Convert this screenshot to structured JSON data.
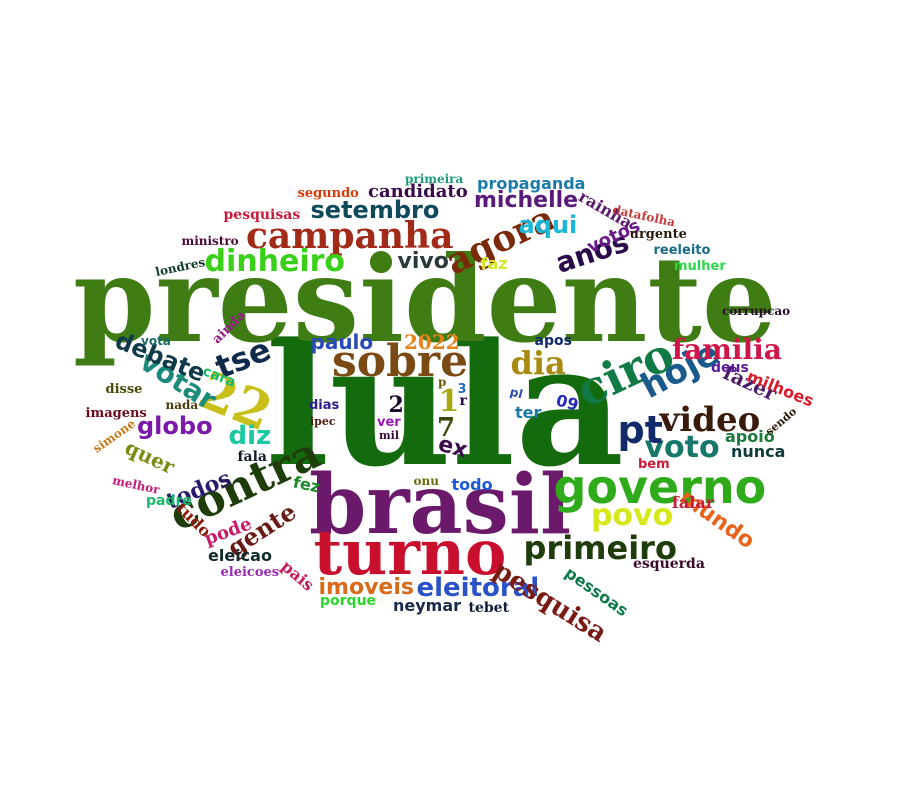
{
  "words": [
    {
      "text": "lula",
      "color": "#146b0e",
      "font": "serif"
    },
    {
      "text": "presidente",
      "color": "#3f7d14",
      "font": "serif"
    },
    {
      "text": "brasil",
      "color": "#6b1a6b",
      "font": "serif"
    },
    {
      "text": "turno",
      "color": "#c8102e",
      "font": "serif"
    },
    {
      "text": "governo",
      "color": "#2faa1a",
      "font": "sans"
    },
    {
      "text": "contra",
      "color": "#1f3d0a",
      "font": "serif"
    },
    {
      "text": "ciro",
      "color": "#0f7a44",
      "font": "serif"
    },
    {
      "text": "campanha",
      "color": "#a12a18",
      "font": "serif"
    },
    {
      "text": "sobre",
      "color": "#7a4a14",
      "font": "serif"
    },
    {
      "text": "agora",
      "color": "#7a2a0a",
      "font": "serif"
    },
    {
      "text": "primeiro",
      "color": "#1f3d0a",
      "font": "sans"
    },
    {
      "text": "video",
      "color": "#3a1a0a",
      "font": "serif"
    },
    {
      "text": "hoje",
      "color": "#1a5a8a",
      "font": "sans"
    },
    {
      "text": "voto",
      "color": "#16786a",
      "font": "sans"
    },
    {
      "text": "povo",
      "color": "#d6e81a",
      "font": "sans"
    },
    {
      "text": "familia",
      "color": "#d0154a",
      "font": "serif"
    },
    {
      "text": "dinheiro",
      "color": "#3ad01a",
      "font": "sans"
    },
    {
      "text": "22",
      "color": "#c8c018",
      "font": "serif"
    },
    {
      "text": "dia",
      "color": "#a88a10",
      "font": "serif"
    },
    {
      "text": "pt",
      "color": "#122a6a",
      "font": "sans"
    },
    {
      "text": "tse",
      "color": "#0f2a4a",
      "font": "sans"
    },
    {
      "text": "eleitoral",
      "color": "#2a52c8",
      "font": "sans"
    },
    {
      "text": "anos",
      "color": "#2a0a4a",
      "font": "sans"
    },
    {
      "text": "pesquisa",
      "color": "#7a1a14",
      "font": "serif"
    },
    {
      "text": "gente",
      "color": "#6a1a14",
      "font": "serif"
    },
    {
      "text": "setembro",
      "color": "#0f4a5a",
      "font": "sans"
    },
    {
      "text": "votar",
      "color": "#1a8a7a",
      "font": "sans"
    },
    {
      "text": "debate",
      "color": "#0f3a4a",
      "font": "sans"
    },
    {
      "text": "todos",
      "color": "#2a1a6a",
      "font": "serif"
    },
    {
      "text": "michelle",
      "color": "#5a1a7a",
      "font": "sans"
    },
    {
      "text": "globo",
      "color": "#7a1aaa",
      "font": "sans"
    },
    {
      "text": "diz",
      "color": "#1ac8a0",
      "font": "sans"
    },
    {
      "text": "imoveis",
      "color": "#d86a1a",
      "font": "sans"
    },
    {
      "text": "aqui",
      "color": "#1ab8d8",
      "font": "sans"
    },
    {
      "text": "mundo",
      "color": "#e8621a",
      "font": "sans"
    },
    {
      "text": "vivo",
      "color": "#2a3a3a",
      "font": "sans"
    },
    {
      "text": "quer",
      "color": "#7a8a10",
      "font": "serif"
    },
    {
      "text": "ex",
      "color": "#3a0a4a",
      "font": "sans"
    },
    {
      "text": "fazer",
      "color": "#4a1a6a",
      "font": "serif"
    },
    {
      "text": "paulo",
      "color": "#2a4ab8",
      "font": "sans"
    },
    {
      "text": "candidato",
      "color": "#3a0a4a",
      "font": "serif"
    },
    {
      "text": "2022",
      "color": "#e8821a",
      "font": "serif"
    },
    {
      "text": "7",
      "color": "#3a4a0a",
      "font": "serif"
    },
    {
      "text": "1",
      "color": "#a8a810",
      "font": "serif"
    },
    {
      "text": "2",
      "color": "#1a0a2a",
      "font": "serif"
    },
    {
      "text": "votos",
      "color": "#6a1a8a",
      "font": "sans"
    },
    {
      "text": "propaganda",
      "color": "#1a7aaa",
      "font": "sans"
    },
    {
      "text": "rainha",
      "color": "#5a1a6a",
      "font": "serif"
    },
    {
      "text": "apoio",
      "color": "#1a7a3a",
      "font": "sans"
    },
    {
      "text": "milhoes",
      "color": "#d81a2a",
      "font": "sans"
    },
    {
      "text": "pode",
      "color": "#c81a6a",
      "font": "serif"
    },
    {
      "text": "pessoas",
      "color": "#0f7a4a",
      "font": "sans"
    },
    {
      "text": "neymar",
      "color": "#1a2a4a",
      "font": "sans"
    },
    {
      "text": "nunca",
      "color": "#0f3a3a",
      "font": "sans"
    },
    {
      "text": "falar",
      "color": "#c81a3a",
      "font": "serif"
    },
    {
      "text": "pesquisas",
      "color": "#c81a3a",
      "font": "serif"
    },
    {
      "text": "ter",
      "color": "#1a7aaa",
      "font": "sans"
    },
    {
      "text": "eleicao",
      "color": "#0f2a2a",
      "font": "sans"
    },
    {
      "text": "tudo",
      "color": "#8a1a0a",
      "font": "serif"
    },
    {
      "text": "pais",
      "color": "#c81a5a",
      "font": "serif"
    },
    {
      "text": "faz",
      "color": "#d8e82a",
      "font": "sans"
    },
    {
      "text": "fez",
      "color": "#1a8a2a",
      "font": "sans"
    },
    {
      "text": "todo",
      "color": "#1a5ad8",
      "font": "sans"
    },
    {
      "text": "deus",
      "color": "#5a1a9a",
      "font": "sans"
    },
    {
      "text": "esquerda",
      "color": "#3a0a2a",
      "font": "serif"
    },
    {
      "text": "fala",
      "color": "#0f1a2a",
      "font": "serif"
    },
    {
      "text": "padre",
      "color": "#1ab86a",
      "font": "sans"
    },
    {
      "text": "porque",
      "color": "#2ad82a",
      "font": "sans"
    },
    {
      "text": "09",
      "color": "#2a2ab8",
      "font": "sans"
    },
    {
      "text": "apos",
      "color": "#0f2a6a",
      "font": "sans"
    },
    {
      "text": "mulher",
      "color": "#2ad84a",
      "font": "sans"
    },
    {
      "text": "reeleito",
      "color": "#1a6a8a",
      "font": "sans"
    },
    {
      "text": "tebet",
      "color": "#0f1a3a",
      "font": "serif"
    },
    {
      "text": "cara",
      "color": "#1ab86a",
      "font": "sans"
    },
    {
      "text": "dias",
      "color": "#2a1a8a",
      "font": "sans"
    },
    {
      "text": "ver",
      "color": "#9a1ab8",
      "font": "sans"
    },
    {
      "text": "ainda",
      "color": "#9a1a8a",
      "font": "serif"
    },
    {
      "text": "urgente",
      "color": "#2a1a0a",
      "font": "serif"
    },
    {
      "text": "segundo",
      "color": "#d83a0a",
      "font": "serif"
    },
    {
      "text": "datafolha",
      "color": "#c83a3a",
      "font": "serif"
    },
    {
      "text": "disse",
      "color": "#4a4a0a",
      "font": "serif"
    },
    {
      "text": "nada",
      "color": "#4a3a0a",
      "font": "serif"
    },
    {
      "text": "imagens",
      "color": "#6a0a1a",
      "font": "serif"
    },
    {
      "text": "ministro",
      "color": "#4a0a3a",
      "font": "serif"
    },
    {
      "text": "eleicoes",
      "color": "#9a2ab8",
      "font": "serif"
    },
    {
      "text": "primeira",
      "color": "#1a9a7a",
      "font": "serif"
    },
    {
      "text": "simone",
      "color": "#c87a1a",
      "font": "serif"
    },
    {
      "text": "melhor",
      "color": "#c81a7a",
      "font": "serif"
    },
    {
      "text": "vota",
      "color": "#1a6a6a",
      "font": "sans"
    },
    {
      "text": "corrupcao",
      "color": "#2a0a2a",
      "font": "serif"
    },
    {
      "text": "londres",
      "color": "#0f3a2a",
      "font": "serif"
    },
    {
      "text": "bem",
      "color": "#c81a3a",
      "font": "sans"
    },
    {
      "text": "sendo",
      "color": "#2a1a0a",
      "font": "serif"
    },
    {
      "text": "onu",
      "color": "#6a6a0a",
      "font": "serif"
    },
    {
      "text": "ipec",
      "color": "#4a1a0a",
      "font": "serif"
    },
    {
      "text": "mil",
      "color": "#3a0a3a",
      "font": "serif"
    },
    {
      "text": "p",
      "color": "#6a5a0a",
      "font": "serif"
    },
    {
      "text": "3",
      "color": "#2a6ab8",
      "font": "sans"
    },
    {
      "text": "r",
      "color": "#2a0a4a",
      "font": "serif"
    },
    {
      "text": "pl",
      "color": "#2a4ab8",
      "font": "sans"
    }
  ]
}
